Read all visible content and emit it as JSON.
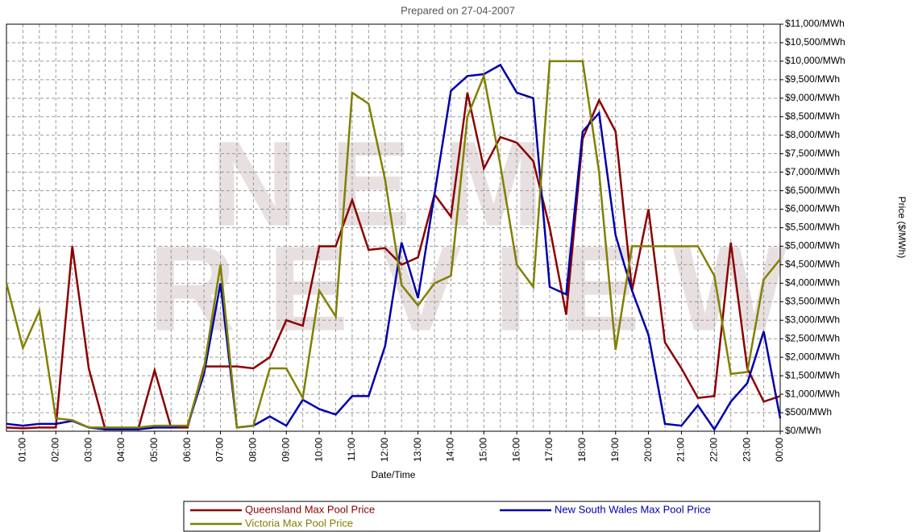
{
  "chart_data": {
    "type": "line",
    "title": "Prepared on 27-04-2007",
    "watermark": [
      "NEM",
      "REVIEW"
    ],
    "x_label": "Date/Time",
    "y_label": "Price ($/MWh)",
    "categories": [
      null,
      "01:00",
      null,
      "02:00",
      null,
      "03:00",
      null,
      "04:00",
      null,
      "05:00",
      null,
      "06:00",
      null,
      "07:00",
      null,
      "08:00",
      null,
      "09:00",
      null,
      "10:00",
      null,
      "11:00",
      null,
      "12:00",
      null,
      "13:00",
      null,
      "14:00",
      null,
      "15:00",
      null,
      "16:00",
      null,
      "17:00",
      null,
      "18:00",
      null,
      "19:00",
      null,
      "20:00",
      null,
      "21:00",
      null,
      "22:00",
      null,
      "23:00",
      null,
      "00:00"
    ],
    "ylim": [
      0,
      11000
    ],
    "yticks": [
      {
        "value": 0,
        "label": "$0/MWh"
      },
      {
        "value": 500,
        "label": "$500/MWh"
      },
      {
        "value": 1000,
        "label": "$1,000/MWh"
      },
      {
        "value": 1500,
        "label": "$1,500/MWh"
      },
      {
        "value": 2000,
        "label": "$2,000/MWh"
      },
      {
        "value": 2500,
        "label": "$2,500/MWh"
      },
      {
        "value": 3000,
        "label": "$3,000/MWh"
      },
      {
        "value": 3500,
        "label": "$3,500/MWh"
      },
      {
        "value": 4000,
        "label": "$4,000/MWh"
      },
      {
        "value": 4500,
        "label": "$4,500/MWh"
      },
      {
        "value": 5000,
        "label": "$5,000/MWh"
      },
      {
        "value": 5500,
        "label": "$5,500/MWh"
      },
      {
        "value": 6000,
        "label": "$6,000/MWh"
      },
      {
        "value": 6500,
        "label": "$6,500/MWh"
      },
      {
        "value": 7000,
        "label": "$7,000/MWh"
      },
      {
        "value": 7500,
        "label": "$7,500/MWh"
      },
      {
        "value": 8000,
        "label": "$8,000/MWh"
      },
      {
        "value": 8500,
        "label": "$8,500/MWh"
      },
      {
        "value": 9000,
        "label": "$9,000/MWh"
      },
      {
        "value": 9500,
        "label": "$9,500/MWh"
      },
      {
        "value": 10000,
        "label": "$10,000/MWh"
      },
      {
        "value": 10500,
        "label": "$10,500/MWh"
      },
      {
        "value": 11000,
        "label": "$11,000/MWh"
      }
    ],
    "grid": true,
    "series": [
      {
        "name": "Queensland Max  Pool Price",
        "color": "#8b0000",
        "values": [
          100,
          80,
          100,
          100,
          5000,
          1700,
          50,
          50,
          50,
          1650,
          100,
          100,
          1750,
          1750,
          1750,
          1700,
          2000,
          3000,
          2850,
          5000,
          5000,
          6250,
          4900,
          4950,
          4500,
          4700,
          6400,
          5800,
          9150,
          7100,
          7950,
          7800,
          7300,
          5500,
          3150,
          7900,
          8950,
          8100,
          3800,
          6000,
          2400,
          1700,
          900,
          950,
          5100,
          1700,
          800,
          950
        ]
      },
      {
        "name": "New South Wales Max  Pool Price",
        "color": "#0000aa",
        "values": [
          200,
          150,
          200,
          200,
          280,
          100,
          50,
          50,
          50,
          100,
          100,
          150,
          1550,
          4000,
          100,
          150,
          400,
          150,
          850,
          600,
          450,
          950,
          950,
          2300,
          5100,
          3600,
          6400,
          9200,
          9600,
          9650,
          9900,
          9150,
          9000,
          3900,
          3700,
          8100,
          8600,
          5300,
          3800,
          2600,
          200,
          150,
          700,
          50,
          800,
          1300,
          2700,
          350
        ]
      },
      {
        "name": "Victoria Max  Pool Price",
        "color": "#808000",
        "values": [
          4000,
          2250,
          3250,
          350,
          300,
          100,
          100,
          100,
          100,
          150,
          150,
          150,
          1700,
          4500,
          100,
          150,
          1700,
          1700,
          900,
          3800,
          3100,
          9150,
          8850,
          6800,
          3950,
          3400,
          4000,
          4200,
          8500,
          9600,
          7200,
          4500,
          3900,
          10000,
          10000,
          10000,
          7000,
          2200,
          5000,
          5000,
          5000,
          5000,
          5000,
          4200,
          1550,
          1600,
          4100,
          4650
        ]
      }
    ]
  }
}
